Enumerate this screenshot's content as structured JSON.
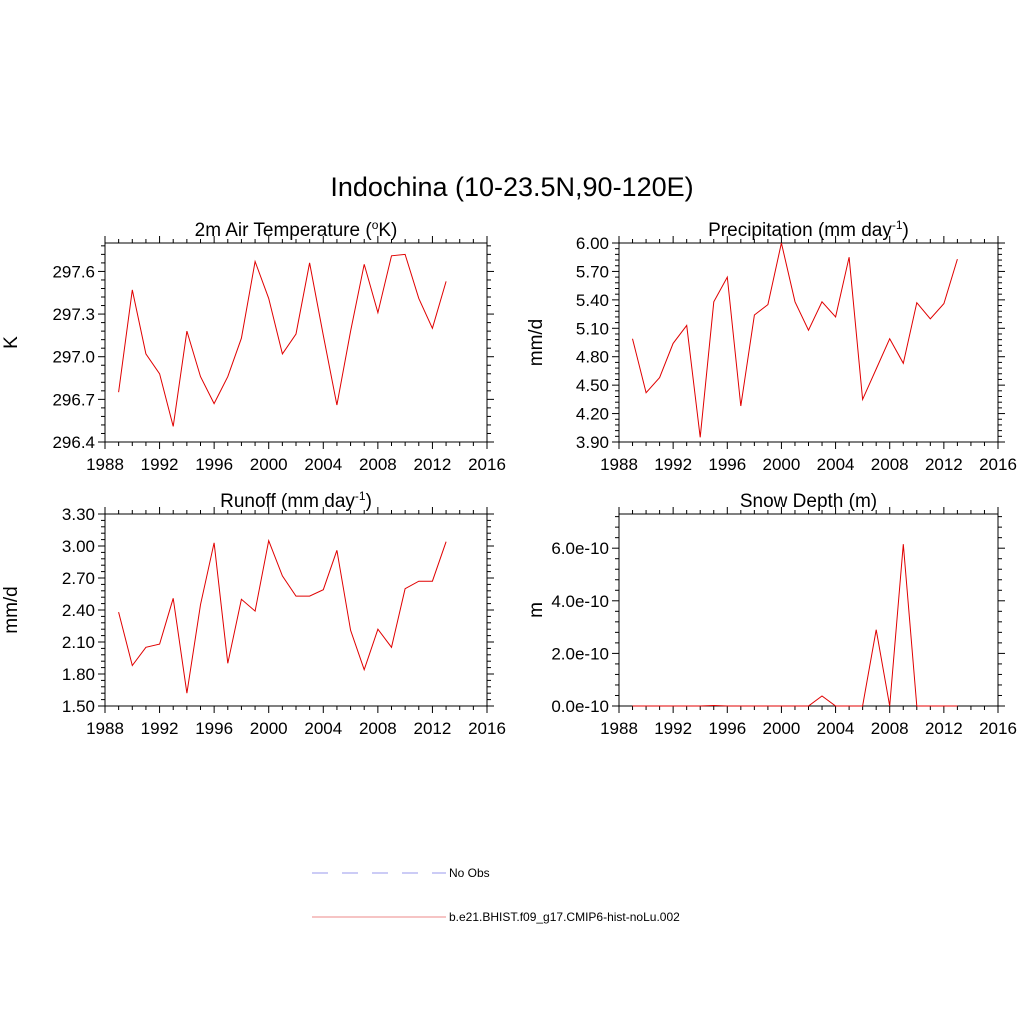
{
  "figure": {
    "title": "Indochina (10-23.5N,90-120E)"
  },
  "legend": [
    {
      "label": "No Obs",
      "color": "#9999ee",
      "style": "dashed"
    },
    {
      "label": "b.e21.BHIST.f09_g17.CMIP6-hist-noLu.002",
      "color": "#ee8888",
      "style": "solid"
    }
  ],
  "chart_data": [
    {
      "type": "line",
      "title": "2m Air Temperature (°K)",
      "title_parts": {
        "pre": "2m Air Temperature (",
        "sup": "o",
        "post": "K)"
      },
      "ylabel": "K",
      "xlim": [
        1988,
        2016
      ],
      "ylim": [
        296.4,
        297.8
      ],
      "xticks": [
        1988,
        1992,
        1996,
        2000,
        2004,
        2008,
        2012,
        2016
      ],
      "yticks": [
        296.4,
        296.7,
        297.0,
        297.3,
        297.6
      ],
      "ytick_labels": [
        "296.4",
        "296.7",
        "297.0",
        "297.3",
        "297.6"
      ],
      "line_color": "#e00000",
      "x": [
        1989,
        1990,
        1991,
        1992,
        1993,
        1994,
        1995,
        1996,
        1997,
        1998,
        1999,
        2000,
        2001,
        2002,
        2003,
        2004,
        2005,
        2006,
        2007,
        2008,
        2009,
        2010,
        2011,
        2012,
        2013
      ],
      "y": [
        296.75,
        297.47,
        297.02,
        296.88,
        296.51,
        297.18,
        296.86,
        296.67,
        296.86,
        297.13,
        297.67,
        297.41,
        297.02,
        297.16,
        297.66,
        297.15,
        296.66,
        297.18,
        297.65,
        297.31,
        297.71,
        297.72,
        297.41,
        297.2,
        297.53
      ]
    },
    {
      "type": "line",
      "title": "Precipitation (mm day-1)",
      "title_parts": {
        "pre": "Precipitation (mm day",
        "sup": "-1",
        "post": ")"
      },
      "ylabel": "mm/d",
      "xlim": [
        1988,
        2016
      ],
      "ylim": [
        3.9,
        6.0
      ],
      "xticks": [
        1988,
        1992,
        1996,
        2000,
        2004,
        2008,
        2012,
        2016
      ],
      "yticks": [
        3.9,
        4.2,
        4.5,
        4.8,
        5.1,
        5.4,
        5.7,
        6.0
      ],
      "ytick_labels": [
        "3.90",
        "4.20",
        "4.50",
        "4.80",
        "5.10",
        "5.40",
        "5.70",
        "6.00"
      ],
      "line_color": "#e00000",
      "x": [
        1989,
        1990,
        1991,
        1992,
        1993,
        1994,
        1995,
        1996,
        1997,
        1998,
        1999,
        2000,
        2001,
        2002,
        2003,
        2004,
        2005,
        2006,
        2007,
        2008,
        2009,
        2010,
        2011,
        2012,
        2013
      ],
      "y": [
        4.99,
        4.42,
        4.58,
        4.94,
        5.13,
        3.95,
        5.38,
        5.64,
        4.28,
        5.24,
        5.35,
        6.0,
        5.38,
        5.08,
        5.38,
        5.22,
        5.85,
        4.35,
        4.67,
        4.99,
        4.73,
        5.37,
        5.2,
        5.36,
        5.83
      ]
    },
    {
      "type": "line",
      "title": "Runoff (mm day-1)",
      "title_parts": {
        "pre": "Runoff (mm day",
        "sup": "-1",
        "post": ")"
      },
      "ylabel": "mm/d",
      "xlim": [
        1988,
        2016
      ],
      "ylim": [
        1.5,
        3.3
      ],
      "xticks": [
        1988,
        1992,
        1996,
        2000,
        2004,
        2008,
        2012,
        2016
      ],
      "yticks": [
        1.5,
        1.8,
        2.1,
        2.4,
        2.7,
        3.0,
        3.3
      ],
      "ytick_labels": [
        "1.50",
        "1.80",
        "2.10",
        "2.40",
        "2.70",
        "3.00",
        "3.30"
      ],
      "line_color": "#e00000",
      "x": [
        1989,
        1990,
        1991,
        1992,
        1993,
        1994,
        1995,
        1996,
        1997,
        1998,
        1999,
        2000,
        2001,
        2002,
        2003,
        2004,
        2005,
        2006,
        2007,
        2008,
        2009,
        2010,
        2011,
        2012,
        2013
      ],
      "y": [
        2.38,
        1.88,
        2.05,
        2.08,
        2.51,
        1.62,
        2.45,
        3.03,
        1.9,
        2.5,
        2.39,
        3.05,
        2.72,
        2.53,
        2.53,
        2.59,
        2.96,
        2.21,
        1.84,
        2.22,
        2.05,
        2.6,
        2.67,
        2.67,
        3.04
      ]
    },
    {
      "type": "line",
      "title": "Snow Depth (m)",
      "title_parts": {
        "pre": "Snow Depth (m)",
        "sup": "",
        "post": ""
      },
      "ylabel": "m",
      "xlim": [
        1988,
        2016
      ],
      "ylim": [
        0,
        7.3e-10
      ],
      "xticks": [
        1988,
        1992,
        1996,
        2000,
        2004,
        2008,
        2012,
        2016
      ],
      "yticks": [
        0,
        2e-10,
        4e-10,
        6e-10
      ],
      "ytick_labels": [
        "0.0e-10",
        "2.0e-10",
        "4.0e-10",
        "6.0e-10"
      ],
      "line_color": "#e00000",
      "x": [
        1989,
        1990,
        1991,
        1992,
        1993,
        1994,
        1995,
        1996,
        1997,
        1998,
        1999,
        2000,
        2001,
        2002,
        2003,
        2004,
        2005,
        2006,
        2007,
        2008,
        2009,
        2010,
        2011,
        2012,
        2013
      ],
      "y": [
        0,
        0,
        0,
        0,
        0,
        0,
        2e-12,
        0,
        0,
        0,
        0,
        0,
        0,
        0,
        3.8e-11,
        0,
        0,
        0,
        2.9e-10,
        0,
        6.15e-10,
        0,
        0,
        0,
        0
      ]
    }
  ]
}
